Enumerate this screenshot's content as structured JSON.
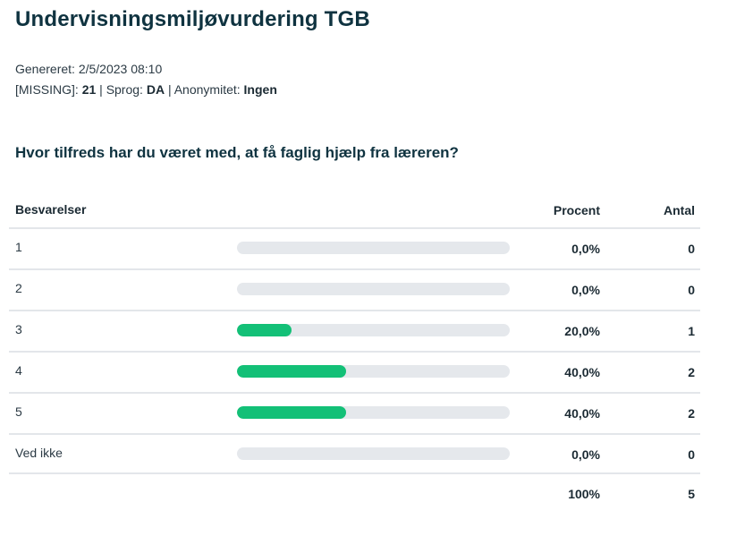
{
  "header": {
    "title": "Undervisningsmiljøvurdering TGB",
    "generated_label": "Genereret:",
    "generated_value": "2/5/2023 08:10",
    "missing_label": "[MISSING]:",
    "missing_value": "21",
    "language_label": "Sprog:",
    "language_value": "DA",
    "anonymity_label": "Anonymitet:",
    "anonymity_value": "Ingen",
    "separator": "|"
  },
  "question": "Hvor tilfreds har du været med, at få faglig hjælp fra læreren?",
  "table": {
    "col_answers": "Besvarelser",
    "col_percent": "Procent",
    "col_count": "Antal",
    "rows": [
      {
        "label": "1",
        "percent_text": "0,0%",
        "fraction": 0.0,
        "count": "0"
      },
      {
        "label": "2",
        "percent_text": "0,0%",
        "fraction": 0.0,
        "count": "0"
      },
      {
        "label": "3",
        "percent_text": "20,0%",
        "fraction": 0.2,
        "count": "1"
      },
      {
        "label": "4",
        "percent_text": "40,0%",
        "fraction": 0.4,
        "count": "2"
      },
      {
        "label": "5",
        "percent_text": "40,0%",
        "fraction": 0.4,
        "count": "2"
      },
      {
        "label": "Ved ikke",
        "percent_text": "0,0%",
        "fraction": 0.0,
        "count": "0"
      }
    ],
    "total_percent": "100%",
    "total_count": "5"
  },
  "colors": {
    "bar_fill": "#13c077",
    "bar_track": "#e5e8ec",
    "title": "#0f3340"
  }
}
